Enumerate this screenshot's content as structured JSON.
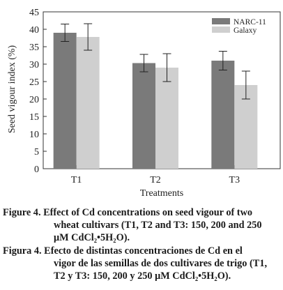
{
  "chart_data": {
    "type": "bar",
    "categories": [
      "T1",
      "T2",
      "T3"
    ],
    "series": [
      {
        "name": "NARC-11",
        "values": [
          39,
          30.3,
          31
        ],
        "errors": [
          2.5,
          2.5,
          2.7
        ],
        "color": "#7a7a7a"
      },
      {
        "name": "Galaxy",
        "values": [
          37.8,
          29,
          24
        ],
        "errors": [
          3.8,
          4,
          4
        ],
        "color": "#cfcfcf"
      }
    ],
    "xlabel": "Treatments",
    "ylabel": "Seed vigour index (%)",
    "ylim": [
      0,
      45
    ],
    "yticks": [
      0,
      5,
      10,
      15,
      20,
      25,
      30,
      35,
      40,
      45
    ],
    "grid": false,
    "legend_position": "top-right"
  },
  "captions": {
    "english": {
      "lines": [
        "Figure 4.  Effect of Cd concentrations on seed vigour of two",
        "wheat cultivars (T1, T2 and T3: 150, 200 and 250",
        "μM CdCl₂•5H₂O)."
      ]
    },
    "spanish": {
      "lines": [
        "Figura 4.  Efecto de distintas concentraciones de Cd en el",
        "vigor de las semillas de dos cultivares de trigo (T1,",
        "T2 y T3: 150, 200 y 250 μM CdCl₂•5H₂O)."
      ]
    }
  }
}
